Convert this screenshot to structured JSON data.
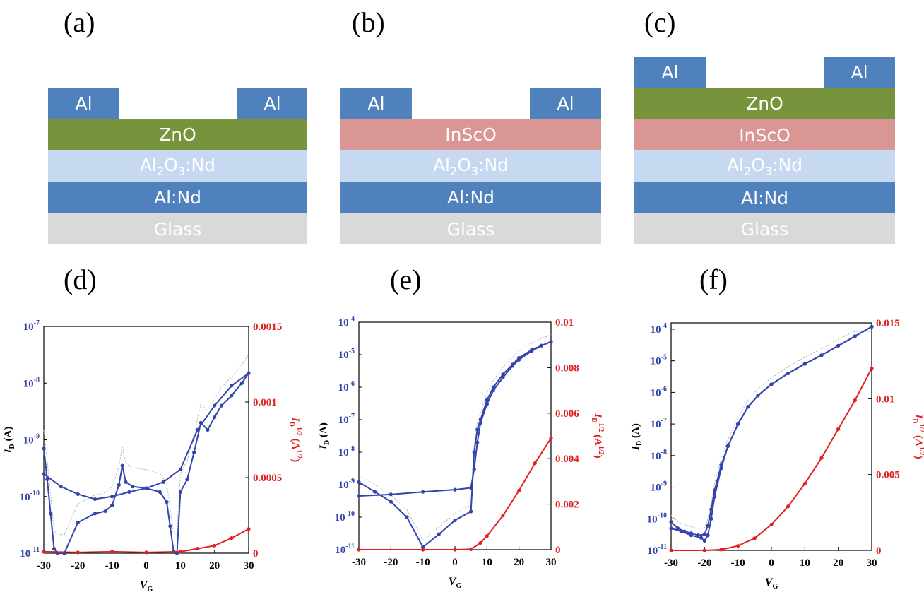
{
  "panels": {
    "a": "(a)",
    "b": "(b)",
    "c": "(c)",
    "d": "(d)",
    "e": "(e)",
    "f": "(f)"
  },
  "colors": {
    "al": "#4f81bd",
    "zno": "#77933c",
    "insco": "#d99694",
    "al2o3": "#c6d9f1",
    "alnd": "#4f81bd",
    "glass": "#d9d9d9",
    "id_series": "#3344aa",
    "sqrt_series": "#e02020",
    "hysteresis": "#b0b0b0"
  },
  "structures": {
    "a": {
      "contact_left": "Al",
      "contact_right": "Al",
      "layers": [
        "ZnO",
        "Al2O3:Nd",
        "Al:Nd",
        "Glass"
      ]
    },
    "b": {
      "contact_left": "Al",
      "contact_right": "Al",
      "layers": [
        "InScO",
        "Al2O3:Nd",
        "Al:Nd",
        "Glass"
      ]
    },
    "c": {
      "contact_left": "Al",
      "contact_right": "Al",
      "layers": [
        "ZnO",
        "InScO",
        "Al2O3:Nd",
        "Al:Nd",
        "Glass"
      ]
    }
  },
  "layer_text": {
    "al": "Al",
    "zno": "ZnO",
    "insco": "InScO",
    "al2o3_a": "Al",
    "al2o3_sub": "2",
    "al2o3_b": "O",
    "al2o3_sub2": "3",
    "al2o3_c": ":Nd",
    "alnd": "Al:Nd",
    "glass": "Glass"
  },
  "axes": {
    "xlabel_main": "V",
    "xlabel_sub": "G",
    "ylabel_left_main": "I",
    "ylabel_left_sub": "D",
    "ylabel_left_unit": " (A)",
    "ylabel_right_main": "I",
    "ylabel_right_sub": "D",
    "ylabel_right_sup": "1/2",
    "ylabel_right_unit": " (A",
    "ylabel_right_unit_sup": "1/2",
    "ylabel_right_close": ")"
  },
  "chart_data": [
    {
      "type": "line",
      "panel": "d",
      "xlabel": "VG",
      "ylabel_left": "ID (A)",
      "ylabel_right": "ID1/2 (A1/2)",
      "xlim": [
        -30,
        30
      ],
      "xticks": [
        "-30",
        "-20",
        "-10",
        "0",
        "10",
        "20",
        "30"
      ],
      "ylim_left_log10": [
        -11,
        -7
      ],
      "yticks_left": [
        {
          "base": "10",
          "exp": "-7"
        },
        {
          "base": "10",
          "exp": "-8"
        },
        {
          "base": "10",
          "exp": "-9"
        },
        {
          "base": "10",
          "exp": "-10"
        },
        {
          "base": "10",
          "exp": "-11"
        }
      ],
      "ylim_right": [
        0,
        0.0015
      ],
      "yticks_right": [
        "0.0015",
        "0.001",
        "0.0005",
        "0"
      ],
      "series": [
        {
          "axis": "left",
          "log": true,
          "x": [
            -30,
            -29,
            -28,
            -27,
            -26,
            -24,
            -20,
            -15,
            -12,
            -10,
            -8,
            -7,
            -6,
            -4,
            0,
            4,
            6,
            7,
            8,
            9,
            10,
            12,
            14,
            16,
            18,
            20,
            22,
            25,
            28,
            30
          ],
          "y": [
            7e-10,
            2e-10,
            5e-11,
            1.2e-11,
            1e-11,
            1e-11,
            3.5e-11,
            5e-11,
            5.5e-11,
            7e-11,
            1.6e-10,
            3.5e-10,
            1.8e-10,
            1.5e-10,
            1.4e-10,
            1.2e-10,
            8e-11,
            3e-11,
            1.1e-11,
            1e-11,
            1.2e-10,
            2e-10,
            6e-10,
            2e-09,
            1.5e-09,
            2.5e-09,
            4e-09,
            6e-09,
            1e-08,
            1.5e-08
          ]
        },
        {
          "axis": "left",
          "log": true,
          "x": [
            -30,
            -25,
            -20,
            -15,
            -10,
            -5,
            0,
            5,
            10,
            15,
            20,
            25,
            30
          ],
          "y": [
            2.5e-10,
            1.5e-10,
            1.1e-10,
            9e-11,
            1e-10,
            1.2e-10,
            1.4e-10,
            1.8e-10,
            3e-10,
            1.5e-09,
            4e-09,
            9e-09,
            1.5e-08
          ]
        },
        {
          "axis": "right",
          "x": [
            -30,
            -20,
            -10,
            0,
            10,
            15,
            20,
            25,
            30
          ],
          "y": [
            1e-05,
            5e-06,
            1e-05,
            5e-06,
            1e-05,
            3e-05,
            5e-05,
            0.0001,
            0.00016
          ]
        }
      ]
    },
    {
      "type": "line",
      "panel": "e",
      "xlabel": "VG",
      "ylabel_left": "ID (A)",
      "ylabel_right": "ID1/2 (A1/2)",
      "xlim": [
        -30,
        30
      ],
      "xticks": [
        "-30",
        "-20",
        "-10",
        "0",
        "10",
        "20",
        "30"
      ],
      "ylim_left_log10": [
        -11,
        -4
      ],
      "yticks_left": [
        {
          "base": "10",
          "exp": "-4"
        },
        {
          "base": "10",
          "exp": "-5"
        },
        {
          "base": "10",
          "exp": "-6"
        },
        {
          "base": "10",
          "exp": "-7"
        },
        {
          "base": "10",
          "exp": "-8"
        },
        {
          "base": "10",
          "exp": "-9"
        },
        {
          "base": "10",
          "exp": "-10"
        },
        {
          "base": "10",
          "exp": "-11"
        }
      ],
      "ylim_right": [
        0,
        0.01
      ],
      "yticks_right": [
        "0.01",
        "0.008",
        "0.006",
        "0.004",
        "0.002",
        "0"
      ],
      "series": [
        {
          "axis": "left",
          "log": true,
          "x": [
            -30,
            -25,
            -20,
            -15,
            -10,
            -5,
            0,
            5,
            6,
            7,
            8,
            10,
            12,
            15,
            18,
            20,
            24,
            27,
            30
          ],
          "y": [
            1.2e-09,
            6e-10,
            3e-10,
            1e-10,
            1.2e-11,
            3e-11,
            8e-11,
            1.5e-10,
            1e-08,
            5e-08,
            1e-07,
            4e-07,
            1e-06,
            2.5e-06,
            5e-06,
            8e-06,
            1.4e-05,
            1.9e-05,
            2.5e-05
          ]
        },
        {
          "axis": "left",
          "log": true,
          "x": [
            -30,
            -20,
            -10,
            0,
            5,
            6,
            7,
            8,
            10,
            12,
            15,
            18,
            20,
            24,
            27,
            30
          ],
          "y": [
            4.5e-10,
            5e-10,
            6e-10,
            7e-10,
            8e-10,
            3e-09,
            2e-08,
            8e-08,
            3e-07,
            8e-07,
            2e-06,
            4.5e-06,
            7e-06,
            1.3e-05,
            1.9e-05,
            2.5e-05
          ]
        },
        {
          "axis": "right",
          "x": [
            -30,
            -10,
            0,
            5,
            8,
            10,
            15,
            20,
            25,
            30
          ],
          "y": [
            0,
            0,
            0,
            2e-05,
            0.0003,
            0.0006,
            0.0015,
            0.0026,
            0.0038,
            0.0049
          ]
        }
      ]
    },
    {
      "type": "line",
      "panel": "f",
      "xlabel": "VG",
      "ylabel_left": "ID (A)",
      "ylabel_right": "ID1/2 (A1/2)",
      "xlim": [
        -30,
        30
      ],
      "xticks": [
        "-30",
        "-20",
        "-10",
        "0",
        "10",
        "20",
        "30"
      ],
      "ylim_left_log10": [
        -11,
        -3.8
      ],
      "yticks_left": [
        {
          "base": "10",
          "exp": "-4"
        },
        {
          "base": "10",
          "exp": "-5"
        },
        {
          "base": "10",
          "exp": "-6"
        },
        {
          "base": "10",
          "exp": "-7"
        },
        {
          "base": "10",
          "exp": "-8"
        },
        {
          "base": "10",
          "exp": "-9"
        },
        {
          "base": "10",
          "exp": "-10"
        },
        {
          "base": "10",
          "exp": "-11"
        }
      ],
      "ylim_right": [
        0,
        0.015
      ],
      "yticks_right": [
        "0.015",
        "0.01",
        "0.005",
        "0"
      ],
      "series": [
        {
          "axis": "left",
          "log": true,
          "x": [
            -30,
            -28,
            -26,
            -24,
            -22,
            -20,
            -19,
            -18,
            -17,
            -15,
            -13,
            -10,
            -7,
            -4,
            0,
            5,
            10,
            15,
            20,
            25,
            30
          ],
          "y": [
            8e-11,
            5e-11,
            4e-11,
            3.5e-11,
            3e-11,
            3.2e-11,
            6e-11,
            2e-10,
            8e-10,
            5e-09,
            2e-08,
            1e-07,
            3.5e-07,
            8e-07,
            1.8e-06,
            4e-06,
            8e-06,
            1.5e-05,
            3e-05,
            6e-05,
            0.00012
          ]
        },
        {
          "axis": "left",
          "log": true,
          "x": [
            -30,
            -27,
            -24,
            -21,
            -20,
            -19,
            -18,
            -17,
            -15,
            -13,
            -10,
            -7,
            -4,
            0,
            5,
            10,
            15,
            20,
            25,
            30
          ],
          "y": [
            5e-11,
            4e-11,
            3e-11,
            2.5e-11,
            2e-11,
            3e-11,
            1e-10,
            5e-10,
            4e-09,
            2e-08,
            1e-07,
            3.5e-07,
            8e-07,
            1.8e-06,
            4e-06,
            8e-06,
            1.5e-05,
            3e-05,
            6e-05,
            0.00012
          ]
        },
        {
          "axis": "right",
          "x": [
            -30,
            -20,
            -15,
            -10,
            -5,
            0,
            5,
            10,
            15,
            20,
            25,
            30
          ],
          "y": [
            0,
            0,
            5e-05,
            0.0003,
            0.0008,
            0.0017,
            0.0029,
            0.0044,
            0.0061,
            0.008,
            0.0099,
            0.012
          ]
        }
      ]
    }
  ]
}
